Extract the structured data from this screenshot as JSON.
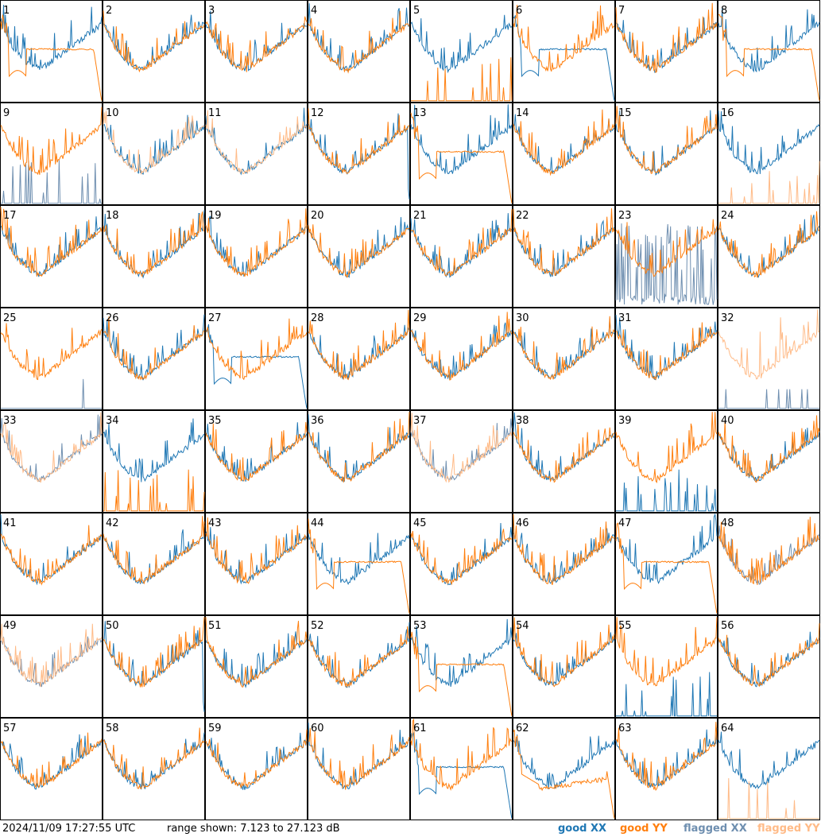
{
  "chart_data": {
    "type": "line",
    "layout": "8x8 small multiples",
    "x_axis": "frequency channel (unlabeled)",
    "y_axis": "power (dB)",
    "ylim": [
      7.123,
      27.123
    ],
    "grid": false,
    "legend_position": "bottom-right",
    "colors": {
      "good_xx": "#1f77b4",
      "good_yy": "#ff7f0e",
      "flagged_xx": "#6f8fb0",
      "flagged_yy": "#ffbb88"
    },
    "panels": [
      {
        "id": "1",
        "xx": "good",
        "yy": "good",
        "pattern": "yy_sag"
      },
      {
        "id": "2",
        "xx": "good",
        "yy": "good",
        "pattern": "normal"
      },
      {
        "id": "3",
        "xx": "good",
        "yy": "good",
        "pattern": "normal"
      },
      {
        "id": "4",
        "xx": "good",
        "yy": "good",
        "pattern": "normal"
      },
      {
        "id": "5",
        "xx": "good",
        "yy": "good",
        "pattern": "yy_spikes"
      },
      {
        "id": "6",
        "xx": "good",
        "yy": "good",
        "pattern": "xx_sag"
      },
      {
        "id": "7",
        "xx": "good",
        "yy": "good",
        "pattern": "normal"
      },
      {
        "id": "8",
        "xx": "good",
        "yy": "good",
        "pattern": "yy_sag"
      },
      {
        "id": "9",
        "xx": "flagged",
        "yy": "good",
        "pattern": "xx_spikes"
      },
      {
        "id": "10",
        "xx": "good",
        "yy": "flagged",
        "pattern": "normal"
      },
      {
        "id": "11",
        "xx": "good",
        "yy": "flagged",
        "pattern": "normal"
      },
      {
        "id": "12",
        "xx": "good",
        "yy": "good",
        "pattern": "normal_drop"
      },
      {
        "id": "13",
        "xx": "good",
        "yy": "good",
        "pattern": "yy_sag"
      },
      {
        "id": "14",
        "xx": "good",
        "yy": "good",
        "pattern": "normal"
      },
      {
        "id": "15",
        "xx": "good",
        "yy": "good",
        "pattern": "normal"
      },
      {
        "id": "16",
        "xx": "good",
        "yy": "flagged",
        "pattern": "yy_spikes"
      },
      {
        "id": "17",
        "xx": "good",
        "yy": "good",
        "pattern": "normal"
      },
      {
        "id": "18",
        "xx": "good",
        "yy": "good",
        "pattern": "normal"
      },
      {
        "id": "19",
        "xx": "good",
        "yy": "good",
        "pattern": "normal"
      },
      {
        "id": "20",
        "xx": "good",
        "yy": "good",
        "pattern": "normal"
      },
      {
        "id": "21",
        "xx": "good",
        "yy": "good",
        "pattern": "normal"
      },
      {
        "id": "22",
        "xx": "good",
        "yy": "good",
        "pattern": "normal"
      },
      {
        "id": "23",
        "xx": "flagged",
        "yy": "good",
        "pattern": "xx_noise"
      },
      {
        "id": "24",
        "xx": "good",
        "yy": "good",
        "pattern": "normal"
      },
      {
        "id": "25",
        "xx": "flagged",
        "yy": "good",
        "pattern": "xx_absent"
      },
      {
        "id": "26",
        "xx": "good",
        "yy": "good",
        "pattern": "normal"
      },
      {
        "id": "27",
        "xx": "good",
        "yy": "good",
        "pattern": "xx_sag"
      },
      {
        "id": "28",
        "xx": "good",
        "yy": "good",
        "pattern": "normal"
      },
      {
        "id": "29",
        "xx": "good",
        "yy": "good",
        "pattern": "normal"
      },
      {
        "id": "30",
        "xx": "good",
        "yy": "good",
        "pattern": "normal"
      },
      {
        "id": "31",
        "xx": "good",
        "yy": "good",
        "pattern": "normal"
      },
      {
        "id": "32",
        "xx": "flagged",
        "yy": "flagged",
        "pattern": "yy_noisy_xx_absent"
      },
      {
        "id": "33",
        "xx": "flagged",
        "yy": "flagged",
        "pattern": "normal"
      },
      {
        "id": "34",
        "xx": "good",
        "yy": "good",
        "pattern": "yy_spikes"
      },
      {
        "id": "35",
        "xx": "good",
        "yy": "good",
        "pattern": "normal"
      },
      {
        "id": "36",
        "xx": "good",
        "yy": "good",
        "pattern": "normal"
      },
      {
        "id": "37",
        "xx": "flagged",
        "yy": "flagged",
        "pattern": "normal"
      },
      {
        "id": "38",
        "xx": "good",
        "yy": "good",
        "pattern": "normal"
      },
      {
        "id": "39",
        "xx": "good",
        "yy": "good",
        "pattern": "xx_spikes"
      },
      {
        "id": "40",
        "xx": "good",
        "yy": "good",
        "pattern": "normal"
      },
      {
        "id": "41",
        "xx": "good",
        "yy": "good",
        "pattern": "normal"
      },
      {
        "id": "42",
        "xx": "good",
        "yy": "good",
        "pattern": "normal"
      },
      {
        "id": "43",
        "xx": "good",
        "yy": "good",
        "pattern": "normal"
      },
      {
        "id": "44",
        "xx": "good",
        "yy": "good",
        "pattern": "yy_sag"
      },
      {
        "id": "45",
        "xx": "good",
        "yy": "good",
        "pattern": "normal"
      },
      {
        "id": "46",
        "xx": "good",
        "yy": "good",
        "pattern": "normal"
      },
      {
        "id": "47",
        "xx": "good",
        "yy": "good",
        "pattern": "yy_sag"
      },
      {
        "id": "48",
        "xx": "flagged",
        "yy": "good",
        "pattern": "normal"
      },
      {
        "id": "49",
        "xx": "flagged",
        "yy": "flagged",
        "pattern": "normal"
      },
      {
        "id": "50",
        "xx": "good",
        "yy": "good",
        "pattern": "normal_drop"
      },
      {
        "id": "51",
        "xx": "good",
        "yy": "good",
        "pattern": "normal"
      },
      {
        "id": "52",
        "xx": "good",
        "yy": "good",
        "pattern": "normal"
      },
      {
        "id": "53",
        "xx": "good",
        "yy": "good",
        "pattern": "yy_sag"
      },
      {
        "id": "54",
        "xx": "good",
        "yy": "good",
        "pattern": "normal"
      },
      {
        "id": "55",
        "xx": "good",
        "yy": "good",
        "pattern": "xx_spikes"
      },
      {
        "id": "56",
        "xx": "good",
        "yy": "good",
        "pattern": "normal"
      },
      {
        "id": "57",
        "xx": "good",
        "yy": "good",
        "pattern": "normal"
      },
      {
        "id": "58",
        "xx": "good",
        "yy": "good",
        "pattern": "normal"
      },
      {
        "id": "59",
        "xx": "good",
        "yy": "good",
        "pattern": "normal"
      },
      {
        "id": "60",
        "xx": "good",
        "yy": "good",
        "pattern": "normal"
      },
      {
        "id": "61",
        "xx": "good",
        "yy": "good",
        "pattern": "xx_sag"
      },
      {
        "id": "62",
        "xx": "good",
        "yy": "good",
        "pattern": "yy_sag_mild"
      },
      {
        "id": "63",
        "xx": "good",
        "yy": "good",
        "pattern": "normal"
      },
      {
        "id": "64",
        "xx": "good",
        "yy": "flagged",
        "pattern": "yy_spikes"
      }
    ]
  },
  "footer": {
    "timestamp": "2024/11/09 17:27:55 UTC",
    "range_text": "range shown: 7.123 to 27.123 dB",
    "legend": {
      "good_xx": "good XX",
      "good_yy": "good YY",
      "flagged_xx": "flagged XX",
      "flagged_yy": "flagged YY"
    }
  }
}
